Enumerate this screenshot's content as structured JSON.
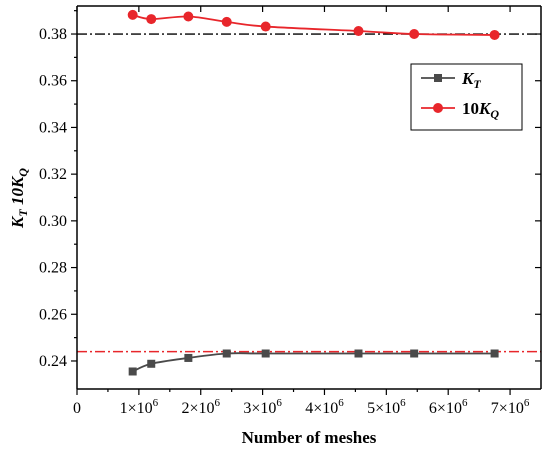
{
  "chart_data": {
    "type": "line",
    "xlabel": "Number of meshes",
    "ylabel_main": "K",
    "ylabel_sub": "T",
    "ylabel_second_main": "10K",
    "ylabel_second_sub": "Q",
    "xlim": [
      0,
      7500000
    ],
    "ylim": [
      0.228,
      0.392
    ],
    "x_ticks": [
      {
        "value": 0,
        "label": "0",
        "sup": ""
      },
      {
        "value": 1000000,
        "label": "1×10",
        "sup": "6"
      },
      {
        "value": 2000000,
        "label": "2×10",
        "sup": "6"
      },
      {
        "value": 3000000,
        "label": "3×10",
        "sup": "6"
      },
      {
        "value": 4000000,
        "label": "4×10",
        "sup": "6"
      },
      {
        "value": 5000000,
        "label": "5×10",
        "sup": "6"
      },
      {
        "value": 6000000,
        "label": "6×10",
        "sup": "6"
      },
      {
        "value": 7000000,
        "label": "7×10",
        "sup": "6"
      }
    ],
    "y_ticks": [
      "0.24",
      "0.26",
      "0.28",
      "0.30",
      "0.32",
      "0.34",
      "0.36",
      "0.38"
    ],
    "reference_lines": [
      {
        "y": 0.38,
        "color": "#000000",
        "style": "dash-dot"
      },
      {
        "y": 0.244,
        "color": "#e8262b",
        "style": "dash-dot"
      }
    ],
    "series": [
      {
        "name_main": "K",
        "name_sub": "T",
        "color": "#4a4a4a",
        "marker": "square",
        "x": [
          900000,
          1200000,
          1800000,
          2420000,
          3050000,
          4550000,
          5450000,
          6750000
        ],
        "y": [
          0.2355,
          0.2388,
          0.2413,
          0.2432,
          0.2432,
          0.2432,
          0.2432,
          0.2432
        ]
      },
      {
        "name_main": "10K",
        "name_sub": "Q",
        "color": "#e8262b",
        "marker": "circle",
        "x": [
          900000,
          1200000,
          1800000,
          2420000,
          3050000,
          4550000,
          5450000,
          6750000
        ],
        "y": [
          0.3882,
          0.3864,
          0.3875,
          0.3852,
          0.3832,
          0.3813,
          0.38,
          0.3796
        ]
      }
    ],
    "legend_position": "right"
  }
}
